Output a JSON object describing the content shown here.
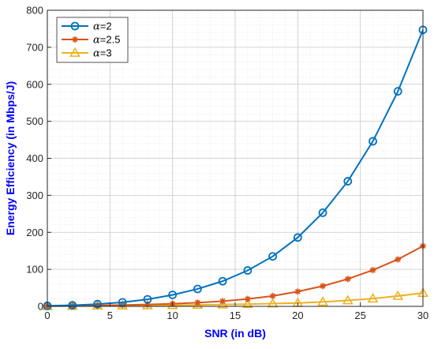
{
  "chart_data": {
    "type": "line",
    "title": "",
    "xlabel": "SNR (in dB)",
    "ylabel": "Energy Efficiency (in Mbps/J)",
    "xlim": [
      0,
      30
    ],
    "ylim": [
      0,
      800
    ],
    "xticks": [
      0,
      5,
      10,
      15,
      20,
      25,
      30
    ],
    "yticks": [
      0,
      100,
      200,
      300,
      400,
      500,
      600,
      700,
      800
    ],
    "grid": "on (major and minor)",
    "legend_position": "top-left",
    "x": [
      0,
      2,
      4,
      6,
      8,
      10,
      12,
      14,
      16,
      18,
      20,
      22,
      24,
      26,
      28,
      30
    ],
    "series": [
      {
        "name": "α=2",
        "legend_symbol": "α",
        "legend_suffix": "=2",
        "color": "#0072BD",
        "marker": "circle",
        "values": [
          1.5,
          3,
          6,
          11,
          19,
          31,
          47,
          68,
          97,
          135,
          186,
          253,
          338,
          446,
          581,
          747
        ]
      },
      {
        "name": "α=2.5",
        "legend_symbol": "α",
        "legend_suffix": "=2.5",
        "color": "#D95319",
        "marker": "asterisk",
        "values": [
          1,
          1.5,
          2.5,
          3.5,
          5,
          7,
          10,
          14,
          20,
          28,
          40,
          55,
          74,
          98,
          127,
          163
        ]
      },
      {
        "name": "α=3",
        "legend_symbol": "α",
        "legend_suffix": "=3",
        "color": "#EDB120",
        "marker": "triangle",
        "values": [
          0.5,
          1,
          1.5,
          2,
          2.5,
          3,
          4,
          5,
          6,
          7.5,
          9,
          12,
          16,
          21,
          28,
          36
        ]
      }
    ]
  },
  "colors": {
    "axis_title": "#0000FF",
    "grid": "#D9D9D9",
    "axis": "#262626"
  }
}
